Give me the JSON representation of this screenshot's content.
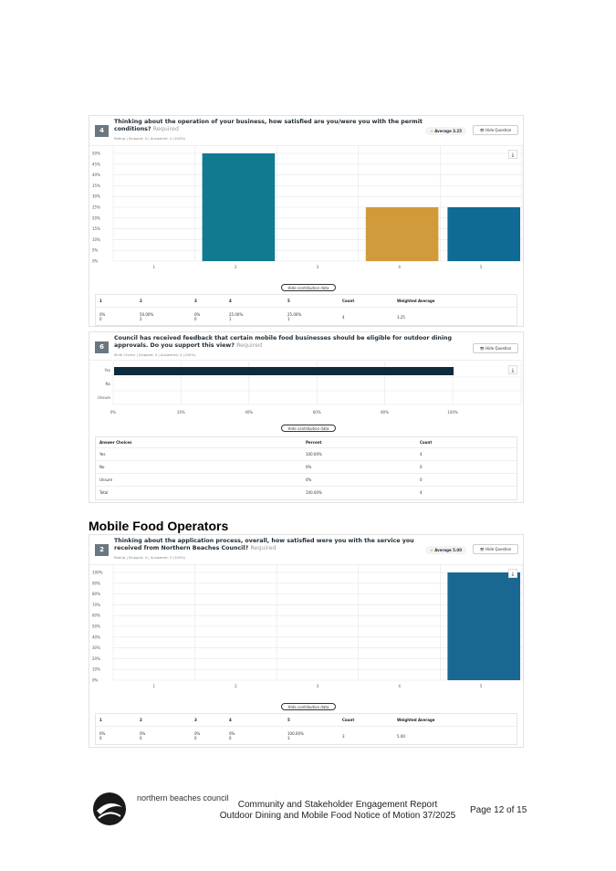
{
  "colors": {
    "q4": [
      "#117a91",
      "#117a91",
      "#117a91",
      "#d19b3c",
      "#0f6b94"
    ],
    "q6": "#0d2b3a",
    "q2": "#1a6891"
  },
  "q4": {
    "num": "4",
    "title": "Thinking about the operation of your business, how satisfied are you/were you with the permit conditions?",
    "required": "Required",
    "meta": "Rating | Skipped: 0 | Answered: 4 (100%)",
    "average": "Average 3.25",
    "hide": "Hide Question",
    "download": "⤓",
    "toggle": "Hide contribution data",
    "chart_data": {
      "type": "bar",
      "categories": [
        "1",
        "2",
        "3",
        "4",
        "5"
      ],
      "values": [
        0,
        50,
        0,
        25,
        25
      ],
      "ylim": [
        0,
        50
      ],
      "yticks": [
        "0%",
        "5%",
        "10%",
        "15%",
        "20%",
        "25%",
        "30%",
        "35%",
        "40%",
        "45%",
        "50%"
      ]
    },
    "table": {
      "headers": [
        "1",
        "2",
        "3",
        "4",
        "5",
        "Count",
        "Weighted Average"
      ],
      "pct": [
        "0%",
        "50.00%",
        "0%",
        "25.00%",
        "25.00%"
      ],
      "cnt": [
        "0",
        "2",
        "0",
        "1",
        "1"
      ],
      "count": "4",
      "wavg": "3.25"
    }
  },
  "q6": {
    "num": "6",
    "title": "Council has received feedback that certain mobile food businesses should be eligible for outdoor dining approvals. Do you support this view?",
    "required": "Required",
    "meta": "Multi Choice | Skipped: 0 | Answered: 4 (100%)",
    "hide": "Hide Question",
    "download": "⤓",
    "toggle": "Hide contribution data",
    "chart_data": {
      "type": "bar",
      "orientation": "horizontal",
      "categories": [
        "Yes",
        "No",
        "Unsure"
      ],
      "values": [
        100,
        0,
        0
      ],
      "xlim": [
        0,
        100
      ],
      "xticks": [
        "0%",
        "20%",
        "40%",
        "60%",
        "80%",
        "100%"
      ]
    },
    "table": {
      "headers": [
        "Answer Choices",
        "Percent",
        "Count"
      ],
      "rows": [
        [
          "Yes",
          "100.00%",
          "4"
        ],
        [
          "No",
          "0%",
          "0"
        ],
        [
          "Unsure",
          "0%",
          "0"
        ],
        [
          "Total",
          "100.00%",
          "4"
        ]
      ]
    }
  },
  "section": "Mobile Food Operators",
  "q2": {
    "num": "2",
    "title": "Thinking about the application process, overall, how satisfied were you with the service you received from Northern Beaches Council?",
    "required": "Required",
    "meta": "Rating | Skipped: 0 | Answered: 3 (100%)",
    "average": "Average 5.00",
    "hide": "Hide Question",
    "download": "⤓",
    "toggle": "Hide contribution data",
    "chart_data": {
      "type": "bar",
      "categories": [
        "1",
        "2",
        "3",
        "4",
        "5"
      ],
      "values": [
        0,
        0,
        0,
        0,
        100
      ],
      "ylim": [
        0,
        100
      ],
      "yticks": [
        "0%",
        "10%",
        "20%",
        "30%",
        "40%",
        "50%",
        "60%",
        "70%",
        "80%",
        "90%",
        "100%"
      ]
    },
    "table": {
      "headers": [
        "1",
        "2",
        "3",
        "4",
        "5",
        "Count",
        "Weighted Average"
      ],
      "pct": [
        "0%",
        "0%",
        "0%",
        "0%",
        "100.00%"
      ],
      "cnt": [
        "0",
        "0",
        "0",
        "0",
        "3"
      ],
      "count": "3",
      "wavg": "5.00"
    }
  },
  "footer": {
    "logo": "northern beaches council",
    "line1": "Community and Stakeholder Engagement Report",
    "line2": "Outdoor Dining and Mobile Food Notice of Motion 37/2025",
    "page": "Page 12 of 15"
  }
}
